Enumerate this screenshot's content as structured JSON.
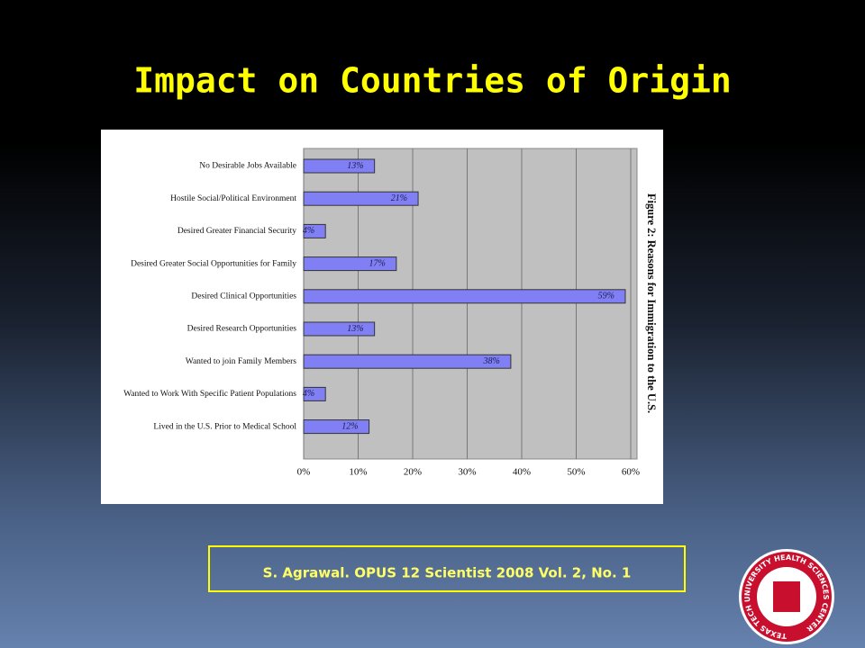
{
  "slide_title": "Impact on Countries of Origin",
  "citation": "S. Agrawal. OPUS 12 Scientist 2008 Vol. 2, No. 1",
  "logo_text": "TEXAS TECH UNIVERSITY HEALTH SCIENCES CENTER",
  "chart_data": {
    "type": "bar",
    "orientation": "horizontal",
    "title": "Figure 2: Reasons for Immigration to the U.S.",
    "categories": [
      "No Desirable Jobs Available",
      "Hostile Social/Political Environment",
      "Desired Greater Financial Security",
      "Desired Greater Social Opportunities for Family",
      "Desired Clinical Opportunities",
      "Desired Research Opportunities",
      "Wanted to join Family Members",
      "Wanted to Work With Specific Patient Populations",
      "Lived in the U.S. Prior to Medical School"
    ],
    "values": [
      13,
      21,
      4,
      17,
      59,
      13,
      38,
      4,
      12
    ],
    "value_labels": [
      "13%",
      "21%",
      "4%",
      "17%",
      "59%",
      "13%",
      "38%",
      "4%",
      "12%"
    ],
    "color": "#8080f4",
    "xlim": [
      0,
      60
    ],
    "xticks": [
      {
        "value": 0,
        "label": "0%"
      },
      {
        "value": 10,
        "label": "10%"
      },
      {
        "value": 20,
        "label": "20%"
      },
      {
        "value": 30,
        "label": "30%"
      },
      {
        "value": 40,
        "label": "40%"
      },
      {
        "value": 50,
        "label": "50%"
      },
      {
        "value": 60,
        "label": "60%"
      }
    ],
    "grid": true
  }
}
